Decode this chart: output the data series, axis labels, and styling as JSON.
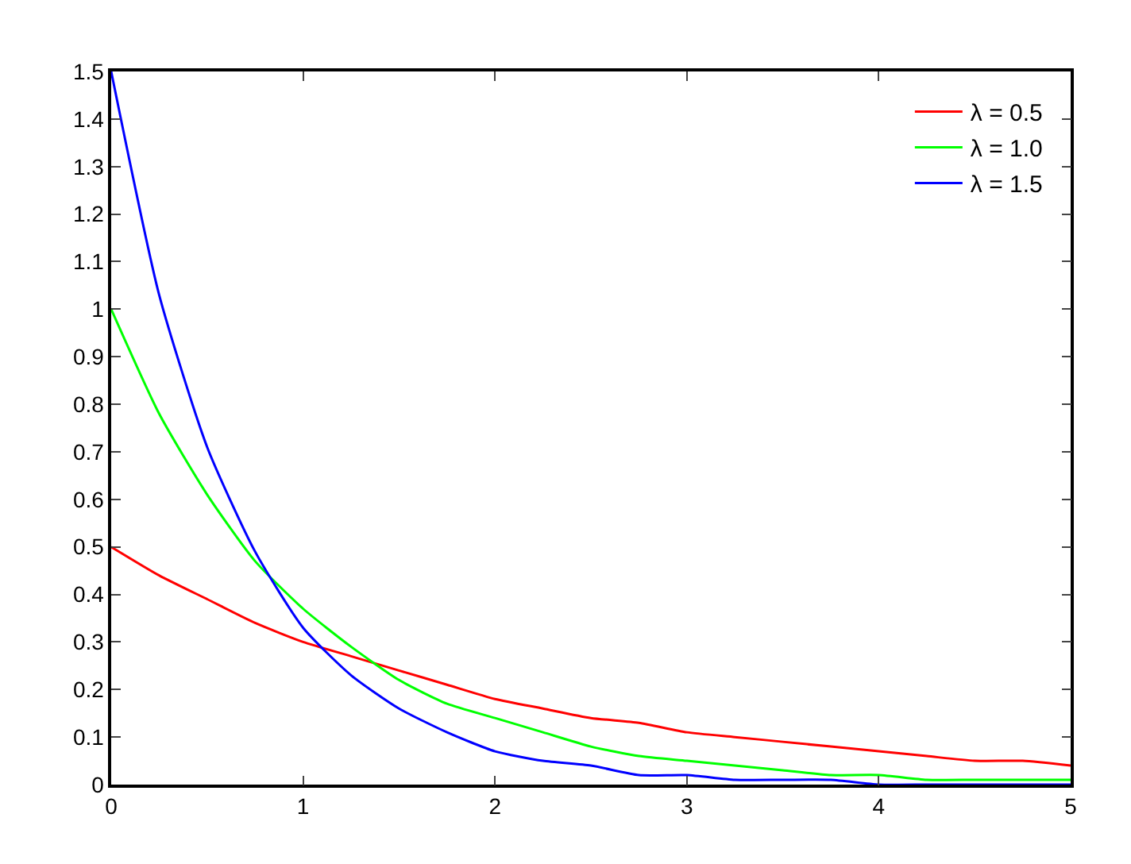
{
  "chart_data": {
    "type": "line",
    "x": [
      0,
      0.25,
      0.5,
      0.75,
      1,
      1.25,
      1.5,
      1.75,
      2,
      2.25,
      2.5,
      2.75,
      3,
      3.25,
      3.5,
      3.75,
      4,
      4.25,
      4.5,
      4.75,
      5
    ],
    "series": [
      {
        "name": "λ = 0.5",
        "color": "#ff0000",
        "values": [
          0.5,
          0.44,
          0.39,
          0.34,
          0.3,
          0.27,
          0.24,
          0.21,
          0.18,
          0.16,
          0.14,
          0.13,
          0.11,
          0.1,
          0.09,
          0.08,
          0.07,
          0.06,
          0.05,
          0.05,
          0.04
        ]
      },
      {
        "name": "λ = 1.0",
        "color": "#00ff00",
        "values": [
          1,
          0.78,
          0.61,
          0.47,
          0.37,
          0.29,
          0.22,
          0.17,
          0.14,
          0.11,
          0.08,
          0.06,
          0.05,
          0.04,
          0.03,
          0.02,
          0.02,
          0.01,
          0.01,
          0.01,
          0.01
        ]
      },
      {
        "name": "λ = 1.5",
        "color": "#0000ff",
        "values": [
          1.5,
          1.03,
          0.71,
          0.49,
          0.33,
          0.23,
          0.16,
          0.11,
          0.07,
          0.05,
          0.04,
          0.02,
          0.02,
          0.01,
          0.01,
          0.01,
          0,
          0,
          0,
          0,
          0
        ]
      }
    ],
    "xlim": [
      0,
      5
    ],
    "xticks": [
      0,
      1,
      2,
      3,
      4,
      5
    ],
    "ylim": [
      0,
      1.5
    ],
    "yticks": [
      0,
      0.1,
      0.2,
      0.3,
      0.4,
      0.5,
      0.6,
      0.7,
      0.8,
      0.9,
      1,
      1.1,
      1.2,
      1.3,
      1.4,
      1.5
    ],
    "legend": "top right",
    "marker": "none",
    "line_style": "solid"
  }
}
